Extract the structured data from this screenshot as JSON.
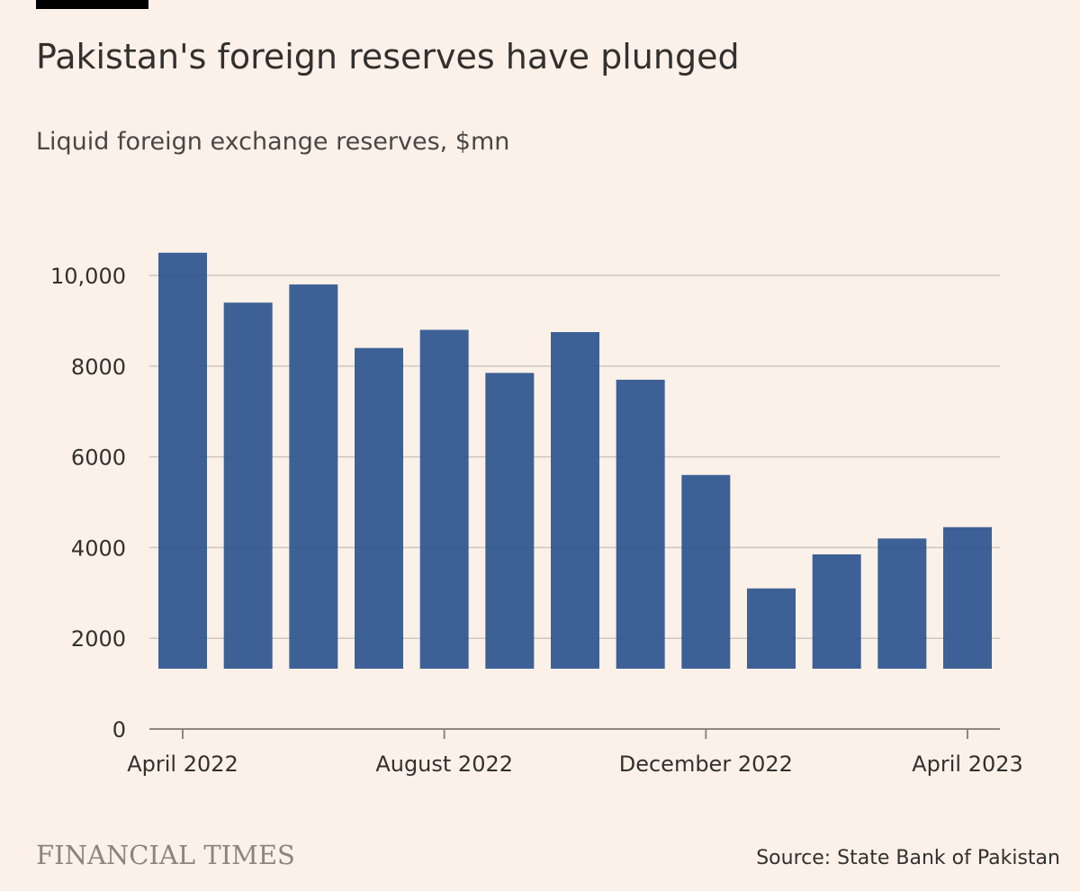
{
  "header": {
    "title": "Pakistan's foreign reserves have plunged",
    "subtitle": "Liquid foreign exchange reserves, $mn"
  },
  "footer": {
    "logo_text": "FINANCIAL TIMES",
    "source": "Source: State Bank of Pakistan"
  },
  "colors": {
    "bar": "#2d558e",
    "grid": "#cec6bf",
    "axis": "#8e8782",
    "tick_label": "#33302e"
  },
  "chart_data": {
    "type": "bar",
    "title": "Pakistan's foreign reserves have plunged",
    "subtitle": "Liquid foreign exchange reserves, $mn",
    "xlabel": "",
    "ylabel": "",
    "ylim": [
      0,
      10000
    ],
    "yticks": [
      0,
      2000,
      4000,
      6000,
      8000,
      10000
    ],
    "ytick_labels": [
      "0",
      "2000",
      "4000",
      "6000",
      "8000",
      "10,000"
    ],
    "categories": [
      "2022-04",
      "2022-05",
      "2022-06",
      "2022-07",
      "2022-08",
      "2022-09",
      "2022-10",
      "2022-11",
      "2022-12",
      "2023-01",
      "2023-02",
      "2023-03",
      "2023-04"
    ],
    "xtick_labels": [
      {
        "category": "2022-04",
        "label": "April 2022"
      },
      {
        "category": "2022-08",
        "label": "August 2022"
      },
      {
        "category": "2022-12",
        "label": "December 2022"
      },
      {
        "category": "2023-04",
        "label": "April 2023"
      }
    ],
    "values": [
      10500,
      9400,
      9800,
      8400,
      8800,
      7850,
      8750,
      7700,
      5600,
      3100,
      3850,
      4200,
      4450
    ],
    "grid": true,
    "legend": "none"
  }
}
